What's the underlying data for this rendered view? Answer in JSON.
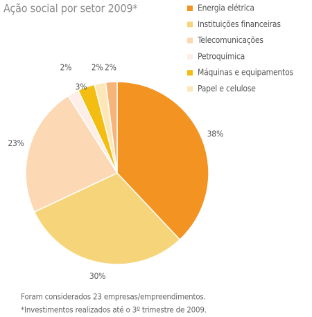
{
  "chart_data": {
    "type": "pie",
    "title": "Ação social por setor 2009*",
    "categories": [
      "Energia elétrica",
      "Instituições financeiras",
      "Telecomunicações",
      "Petroquímica",
      "Máquinas e equipamentos",
      "Papel e celulose",
      null
    ],
    "values": [
      38,
      30,
      23,
      2,
      3,
      2,
      2
    ],
    "value_labels": [
      "38%",
      "30%",
      "23%",
      "2%",
      "3%",
      "2%",
      "2%"
    ],
    "colors": [
      "#f39322",
      "#f6d57a",
      "#fcd8b4",
      "#fdeee8",
      "#f3bd12",
      "#fde7b9",
      "#f7b478"
    ],
    "legend": "top-right",
    "notes": [
      "Foram considerados 23 empresas/empreendimentos.",
      "*Investimentos realizados até o 3º trimestre de 2009."
    ]
  }
}
